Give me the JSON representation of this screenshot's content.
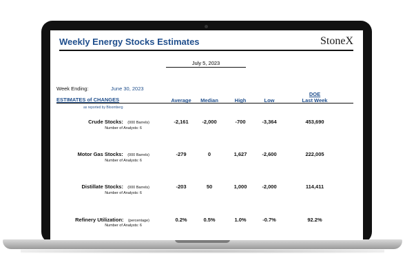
{
  "report": {
    "title": "Weekly Energy Stocks Estimates",
    "brand": "StoneX",
    "date": "July 5, 2023",
    "week_ending_label": "Week Ending:",
    "week_ending_value": "June 30, 2023",
    "estimates_header": "ESTIMATES of CHANGES",
    "estimates_sub": "as reported by Bloomberg"
  },
  "columns": {
    "average": "Average",
    "median": "Median",
    "high": "High",
    "low": "Low",
    "doe_line1": "DOE",
    "doe_line2": "Last Week"
  },
  "rows": [
    {
      "label": "Crude Stocks:",
      "unit": "(000 Barrels)",
      "analysts": "Number of Analysts:  6",
      "average": "-2,161",
      "median": "-2,000",
      "high": "-700",
      "low": "-3,364",
      "doe": "453,690"
    },
    {
      "label": "Motor Gas Stocks:",
      "unit": "(000 Barrels)",
      "analysts": "Number of Analysts:  6",
      "average": "-279",
      "median": "0",
      "high": "1,627",
      "low": "-2,600",
      "doe": "222,005"
    },
    {
      "label": "Distillate Stocks:",
      "unit": "(000 Barrels)",
      "analysts": "Number of Analysts:  6",
      "average": "-203",
      "median": "50",
      "high": "1,000",
      "low": "-2,000",
      "doe": "114,411"
    },
    {
      "label": "Refinery Utilization:",
      "unit": "(percentage)",
      "analysts": "Number of Analysts:  6",
      "average": "0.2%",
      "median": "0.5%",
      "high": "1.0%",
      "low": "-0.7%",
      "doe": "92.2%"
    }
  ]
}
